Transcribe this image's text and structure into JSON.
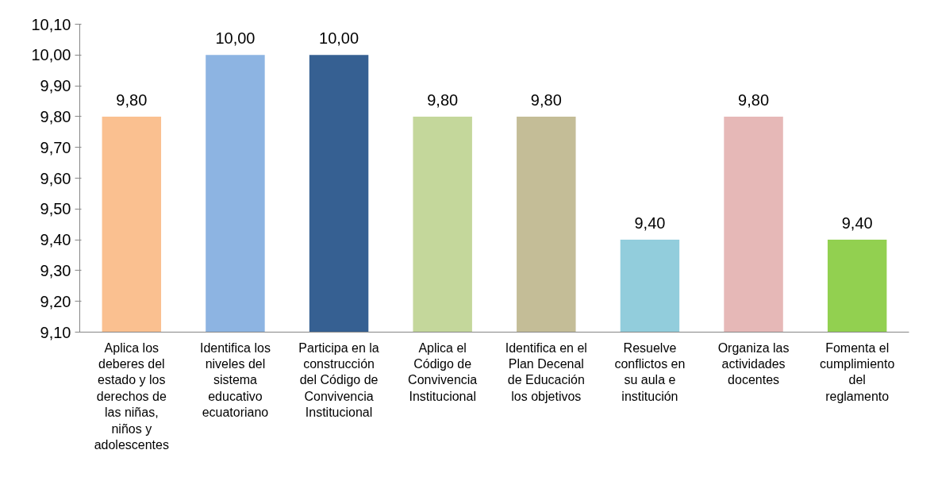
{
  "chart_data": {
    "type": "bar",
    "categories": [
      "Aplica los\ndeberes del\nestado y los\nderechos de\nlas niñas,\nniños y\nadolescentes",
      "Identifica los\nniveles del\nsistema\neducativo\necuatoriano",
      "Participa en la\nconstrucción\ndel Código de\nConvivencia\nInstitucional",
      "Aplica el\nCódigo de\nConvivencia\nInstitucional",
      "Identifica en el\nPlan Decenal\nde Educación\nlos objetivos",
      "Resuelve\nconflictos en\nsu aula e\ninstitución",
      "Organiza las\nactividades\ndocentes",
      "Fomenta el\ncumplimiento\ndel\nreglamento"
    ],
    "values": [
      9.8,
      10.0,
      10.0,
      9.8,
      9.8,
      9.4,
      9.8,
      9.4
    ],
    "colors": [
      "#fac090",
      "#8db4e2",
      "#366092",
      "#c4d79b",
      "#c4bd97",
      "#92cddc",
      "#e6b8b7",
      "#92d050"
    ],
    "value_labels": [
      "9,80",
      "10,00",
      "10,00",
      "9,80",
      "9,80",
      "9,40",
      "9,80",
      "9,40"
    ],
    "ylim": [
      9.1,
      10.1
    ],
    "yticks": [
      {
        "value": 9.1,
        "label": "9,10"
      },
      {
        "value": 9.2,
        "label": "9,20"
      },
      {
        "value": 9.3,
        "label": "9,30"
      },
      {
        "value": 9.4,
        "label": "9,40"
      },
      {
        "value": 9.5,
        "label": "9,50"
      },
      {
        "value": 9.6,
        "label": "9,60"
      },
      {
        "value": 9.7,
        "label": "9,70"
      },
      {
        "value": 9.8,
        "label": "9,80"
      },
      {
        "value": 9.9,
        "label": "9,90"
      },
      {
        "value": 10.0,
        "label": "10,00"
      },
      {
        "value": 10.1,
        "label": "10,10"
      }
    ],
    "grid": false
  }
}
